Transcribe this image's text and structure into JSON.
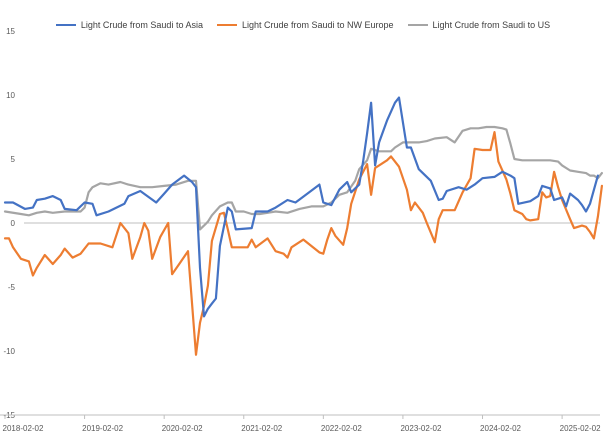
{
  "chart_data": {
    "type": "line",
    "title": "",
    "xlabel": "",
    "ylabel": "",
    "ylim": [
      -15,
      15
    ],
    "yticks": [
      -15,
      -10,
      -5,
      0,
      5,
      10,
      15
    ],
    "ytick_labels": [
      "-15",
      "-10",
      "-5",
      "0",
      "5",
      "10",
      "15"
    ],
    "xlim": [
      2018.0,
      2025.25
    ],
    "xticks": [
      2018.0,
      2019.0,
      2020.0,
      2021.0,
      2022.0,
      2023.0,
      2024.0,
      2025.0
    ],
    "xtick_labels": [
      "2018-02-02",
      "2019-02-02",
      "2020-02-02",
      "2021-02-02",
      "2022-02-02",
      "2023-02-02",
      "2024-02-02",
      "2025-02-02"
    ],
    "legend_position": "top",
    "series": [
      {
        "name": "Light Crude from Saudi to Asia",
        "color": "#4472C4",
        "points": [
          [
            2018.0,
            1.6
          ],
          [
            2018.1,
            1.6
          ],
          [
            2018.25,
            1.1
          ],
          [
            2018.35,
            1.2
          ],
          [
            2018.4,
            1.8
          ],
          [
            2018.5,
            1.9
          ],
          [
            2018.6,
            2.1
          ],
          [
            2018.7,
            1.8
          ],
          [
            2018.75,
            1.1
          ],
          [
            2018.9,
            1.0
          ],
          [
            2019.0,
            1.6
          ],
          [
            2019.1,
            1.5
          ],
          [
            2019.15,
            0.6
          ],
          [
            2019.3,
            0.9
          ],
          [
            2019.5,
            1.5
          ],
          [
            2019.55,
            2.1
          ],
          [
            2019.7,
            2.5
          ],
          [
            2019.9,
            1.6
          ],
          [
            2020.0,
            2.3
          ],
          [
            2020.1,
            3.0
          ],
          [
            2020.25,
            3.7
          ],
          [
            2020.35,
            3.2
          ],
          [
            2020.4,
            2.8
          ],
          [
            2020.45,
            -3.5
          ],
          [
            2020.5,
            -7.3
          ],
          [
            2020.55,
            -6.7
          ],
          [
            2020.6,
            -6.3
          ],
          [
            2020.65,
            -5.9
          ],
          [
            2020.7,
            -1.8
          ],
          [
            2020.8,
            1.2
          ],
          [
            2020.85,
            0.9
          ],
          [
            2020.9,
            -0.5
          ],
          [
            2021.1,
            -0.4
          ],
          [
            2021.15,
            0.9
          ],
          [
            2021.3,
            0.9
          ],
          [
            2021.4,
            1.2
          ],
          [
            2021.55,
            1.8
          ],
          [
            2021.65,
            1.6
          ],
          [
            2021.8,
            2.3
          ],
          [
            2021.95,
            3.0
          ],
          [
            2022.0,
            1.6
          ],
          [
            2022.1,
            1.4
          ],
          [
            2022.2,
            2.6
          ],
          [
            2022.3,
            3.2
          ],
          [
            2022.35,
            2.4
          ],
          [
            2022.45,
            3.0
          ],
          [
            2022.5,
            4.8
          ],
          [
            2022.55,
            7.0
          ],
          [
            2022.6,
            9.4
          ],
          [
            2022.65,
            4.5
          ],
          [
            2022.7,
            6.3
          ],
          [
            2022.8,
            8.0
          ],
          [
            2022.9,
            9.4
          ],
          [
            2022.95,
            9.8
          ],
          [
            2023.05,
            5.9
          ],
          [
            2023.1,
            5.9
          ],
          [
            2023.2,
            4.2
          ],
          [
            2023.35,
            3.3
          ],
          [
            2023.45,
            1.8
          ],
          [
            2023.5,
            1.9
          ],
          [
            2023.55,
            2.5
          ],
          [
            2023.7,
            2.8
          ],
          [
            2023.8,
            2.6
          ],
          [
            2023.9,
            3.0
          ],
          [
            2024.0,
            3.5
          ],
          [
            2024.15,
            3.6
          ],
          [
            2024.25,
            4.0
          ],
          [
            2024.35,
            3.7
          ],
          [
            2024.4,
            3.5
          ],
          [
            2024.45,
            1.5
          ],
          [
            2024.6,
            1.7
          ],
          [
            2024.7,
            2.1
          ],
          [
            2024.75,
            2.9
          ],
          [
            2024.85,
            2.7
          ],
          [
            2024.9,
            1.8
          ],
          [
            2025.0,
            2.0
          ],
          [
            2025.05,
            1.3
          ],
          [
            2025.1,
            2.3
          ],
          [
            2025.2,
            1.8
          ],
          [
            2025.25,
            1.4
          ],
          [
            2025.3,
            0.9
          ],
          [
            2025.35,
            1.5
          ],
          [
            2025.45,
            3.7
          ]
        ]
      },
      {
        "name": "Light Crude from Saudi to NW Europe",
        "color": "#ED7D31",
        "points": [
          [
            2018.0,
            -1.2
          ],
          [
            2018.05,
            -1.2
          ],
          [
            2018.1,
            -1.9
          ],
          [
            2018.2,
            -2.8
          ],
          [
            2018.3,
            -3.0
          ],
          [
            2018.35,
            -4.1
          ],
          [
            2018.4,
            -3.5
          ],
          [
            2018.5,
            -2.5
          ],
          [
            2018.6,
            -3.2
          ],
          [
            2018.7,
            -2.5
          ],
          [
            2018.75,
            -2.0
          ],
          [
            2018.85,
            -2.7
          ],
          [
            2018.95,
            -2.4
          ],
          [
            2019.05,
            -1.6
          ],
          [
            2019.2,
            -1.6
          ],
          [
            2019.35,
            -1.9
          ],
          [
            2019.45,
            0.0
          ],
          [
            2019.55,
            -0.8
          ],
          [
            2019.6,
            -2.8
          ],
          [
            2019.7,
            -1.1
          ],
          [
            2019.75,
            0.0
          ],
          [
            2019.8,
            -0.6
          ],
          [
            2019.85,
            -2.8
          ],
          [
            2019.95,
            -1.1
          ],
          [
            2020.05,
            0.0
          ],
          [
            2020.1,
            -4.0
          ],
          [
            2020.2,
            -3.1
          ],
          [
            2020.3,
            -2.2
          ],
          [
            2020.4,
            -10.3
          ],
          [
            2020.45,
            -7.8
          ],
          [
            2020.5,
            -6.5
          ],
          [
            2020.55,
            -4.9
          ],
          [
            2020.6,
            -1.4
          ],
          [
            2020.7,
            0.7
          ],
          [
            2020.75,
            0.8
          ],
          [
            2020.8,
            -0.5
          ],
          [
            2020.85,
            -1.9
          ],
          [
            2020.95,
            -1.9
          ],
          [
            2021.05,
            -1.9
          ],
          [
            2021.1,
            -1.3
          ],
          [
            2021.15,
            -1.9
          ],
          [
            2021.3,
            -1.2
          ],
          [
            2021.4,
            -2.2
          ],
          [
            2021.5,
            -2.4
          ],
          [
            2021.55,
            -2.7
          ],
          [
            2021.6,
            -1.9
          ],
          [
            2021.75,
            -1.3
          ],
          [
            2021.85,
            -1.8
          ],
          [
            2021.95,
            -2.3
          ],
          [
            2022.0,
            -2.4
          ],
          [
            2022.05,
            -1.3
          ],
          [
            2022.1,
            -0.4
          ],
          [
            2022.15,
            -1.0
          ],
          [
            2022.25,
            -1.7
          ],
          [
            2022.3,
            -0.4
          ],
          [
            2022.35,
            1.5
          ],
          [
            2022.45,
            3.4
          ],
          [
            2022.55,
            4.6
          ],
          [
            2022.6,
            2.2
          ],
          [
            2022.65,
            4.3
          ],
          [
            2022.8,
            4.9
          ],
          [
            2022.85,
            5.2
          ],
          [
            2022.95,
            4.4
          ],
          [
            2023.05,
            2.6
          ],
          [
            2023.1,
            1.0
          ],
          [
            2023.15,
            1.6
          ],
          [
            2023.25,
            0.8
          ],
          [
            2023.3,
            0.0
          ],
          [
            2023.4,
            -1.5
          ],
          [
            2023.45,
            0.3
          ],
          [
            2023.5,
            1.0
          ],
          [
            2023.65,
            1.0
          ],
          [
            2023.75,
            2.4
          ],
          [
            2023.85,
            3.5
          ],
          [
            2023.9,
            5.8
          ],
          [
            2024.0,
            5.7
          ],
          [
            2024.1,
            5.7
          ],
          [
            2024.15,
            7.1
          ],
          [
            2024.2,
            4.8
          ],
          [
            2024.3,
            3.4
          ],
          [
            2024.35,
            2.3
          ],
          [
            2024.4,
            1.0
          ],
          [
            2024.5,
            0.7
          ],
          [
            2024.55,
            0.3
          ],
          [
            2024.6,
            0.2
          ],
          [
            2024.7,
            0.3
          ],
          [
            2024.75,
            2.4
          ],
          [
            2024.8,
            2.0
          ],
          [
            2024.85,
            2.1
          ],
          [
            2024.9,
            4.0
          ],
          [
            2024.95,
            2.8
          ],
          [
            2025.0,
            1.8
          ],
          [
            2025.1,
            0.3
          ],
          [
            2025.15,
            -0.4
          ],
          [
            2025.25,
            -0.2
          ],
          [
            2025.3,
            -0.3
          ],
          [
            2025.35,
            -0.7
          ],
          [
            2025.4,
            -1.2
          ],
          [
            2025.45,
            0.5
          ],
          [
            2025.5,
            2.9
          ]
        ]
      },
      {
        "name": "Light Crude from Saudi to US",
        "color": "#A5A5A5",
        "points": [
          [
            2018.0,
            0.9
          ],
          [
            2018.2,
            0.7
          ],
          [
            2018.3,
            0.6
          ],
          [
            2018.4,
            0.8
          ],
          [
            2018.5,
            0.9
          ],
          [
            2018.6,
            0.8
          ],
          [
            2018.75,
            0.9
          ],
          [
            2018.95,
            0.9
          ],
          [
            2019.0,
            1.2
          ],
          [
            2019.05,
            2.4
          ],
          [
            2019.1,
            2.8
          ],
          [
            2019.2,
            3.1
          ],
          [
            2019.3,
            3.0
          ],
          [
            2019.45,
            3.2
          ],
          [
            2019.55,
            3.0
          ],
          [
            2019.7,
            2.8
          ],
          [
            2019.85,
            2.8
          ],
          [
            2020.0,
            2.9
          ],
          [
            2020.15,
            3.0
          ],
          [
            2020.3,
            3.3
          ],
          [
            2020.4,
            3.3
          ],
          [
            2020.45,
            -0.5
          ],
          [
            2020.5,
            -0.2
          ],
          [
            2020.55,
            0.1
          ],
          [
            2020.6,
            0.6
          ],
          [
            2020.7,
            1.3
          ],
          [
            2020.8,
            1.6
          ],
          [
            2020.85,
            1.6
          ],
          [
            2020.9,
            0.9
          ],
          [
            2021.0,
            0.9
          ],
          [
            2021.1,
            0.7
          ],
          [
            2021.2,
            0.7
          ],
          [
            2021.3,
            0.8
          ],
          [
            2021.4,
            0.9
          ],
          [
            2021.55,
            0.8
          ],
          [
            2021.7,
            1.1
          ],
          [
            2021.85,
            1.3
          ],
          [
            2022.0,
            1.3
          ],
          [
            2022.1,
            1.6
          ],
          [
            2022.2,
            2.2
          ],
          [
            2022.3,
            2.4
          ],
          [
            2022.4,
            3.3
          ],
          [
            2022.45,
            4.2
          ],
          [
            2022.55,
            4.9
          ],
          [
            2022.6,
            5.8
          ],
          [
            2022.7,
            5.6
          ],
          [
            2022.8,
            5.6
          ],
          [
            2022.85,
            5.6
          ],
          [
            2022.9,
            5.9
          ],
          [
            2023.0,
            6.3
          ],
          [
            2023.1,
            6.3
          ],
          [
            2023.2,
            6.3
          ],
          [
            2023.3,
            6.4
          ],
          [
            2023.4,
            6.6
          ],
          [
            2023.55,
            6.7
          ],
          [
            2023.65,
            6.3
          ],
          [
            2023.75,
            7.2
          ],
          [
            2023.85,
            7.4
          ],
          [
            2023.95,
            7.4
          ],
          [
            2024.05,
            7.5
          ],
          [
            2024.15,
            7.5
          ],
          [
            2024.25,
            7.4
          ],
          [
            2024.3,
            7.3
          ],
          [
            2024.35,
            6.2
          ],
          [
            2024.4,
            5.0
          ],
          [
            2024.5,
            4.9
          ],
          [
            2024.6,
            4.9
          ],
          [
            2024.75,
            4.9
          ],
          [
            2024.85,
            4.9
          ],
          [
            2024.95,
            4.8
          ],
          [
            2025.0,
            4.5
          ],
          [
            2025.1,
            4.1
          ],
          [
            2025.2,
            4.0
          ],
          [
            2025.3,
            3.9
          ],
          [
            2025.35,
            3.7
          ],
          [
            2025.4,
            3.7
          ],
          [
            2025.45,
            3.5
          ],
          [
            2025.5,
            3.9
          ]
        ]
      }
    ]
  }
}
